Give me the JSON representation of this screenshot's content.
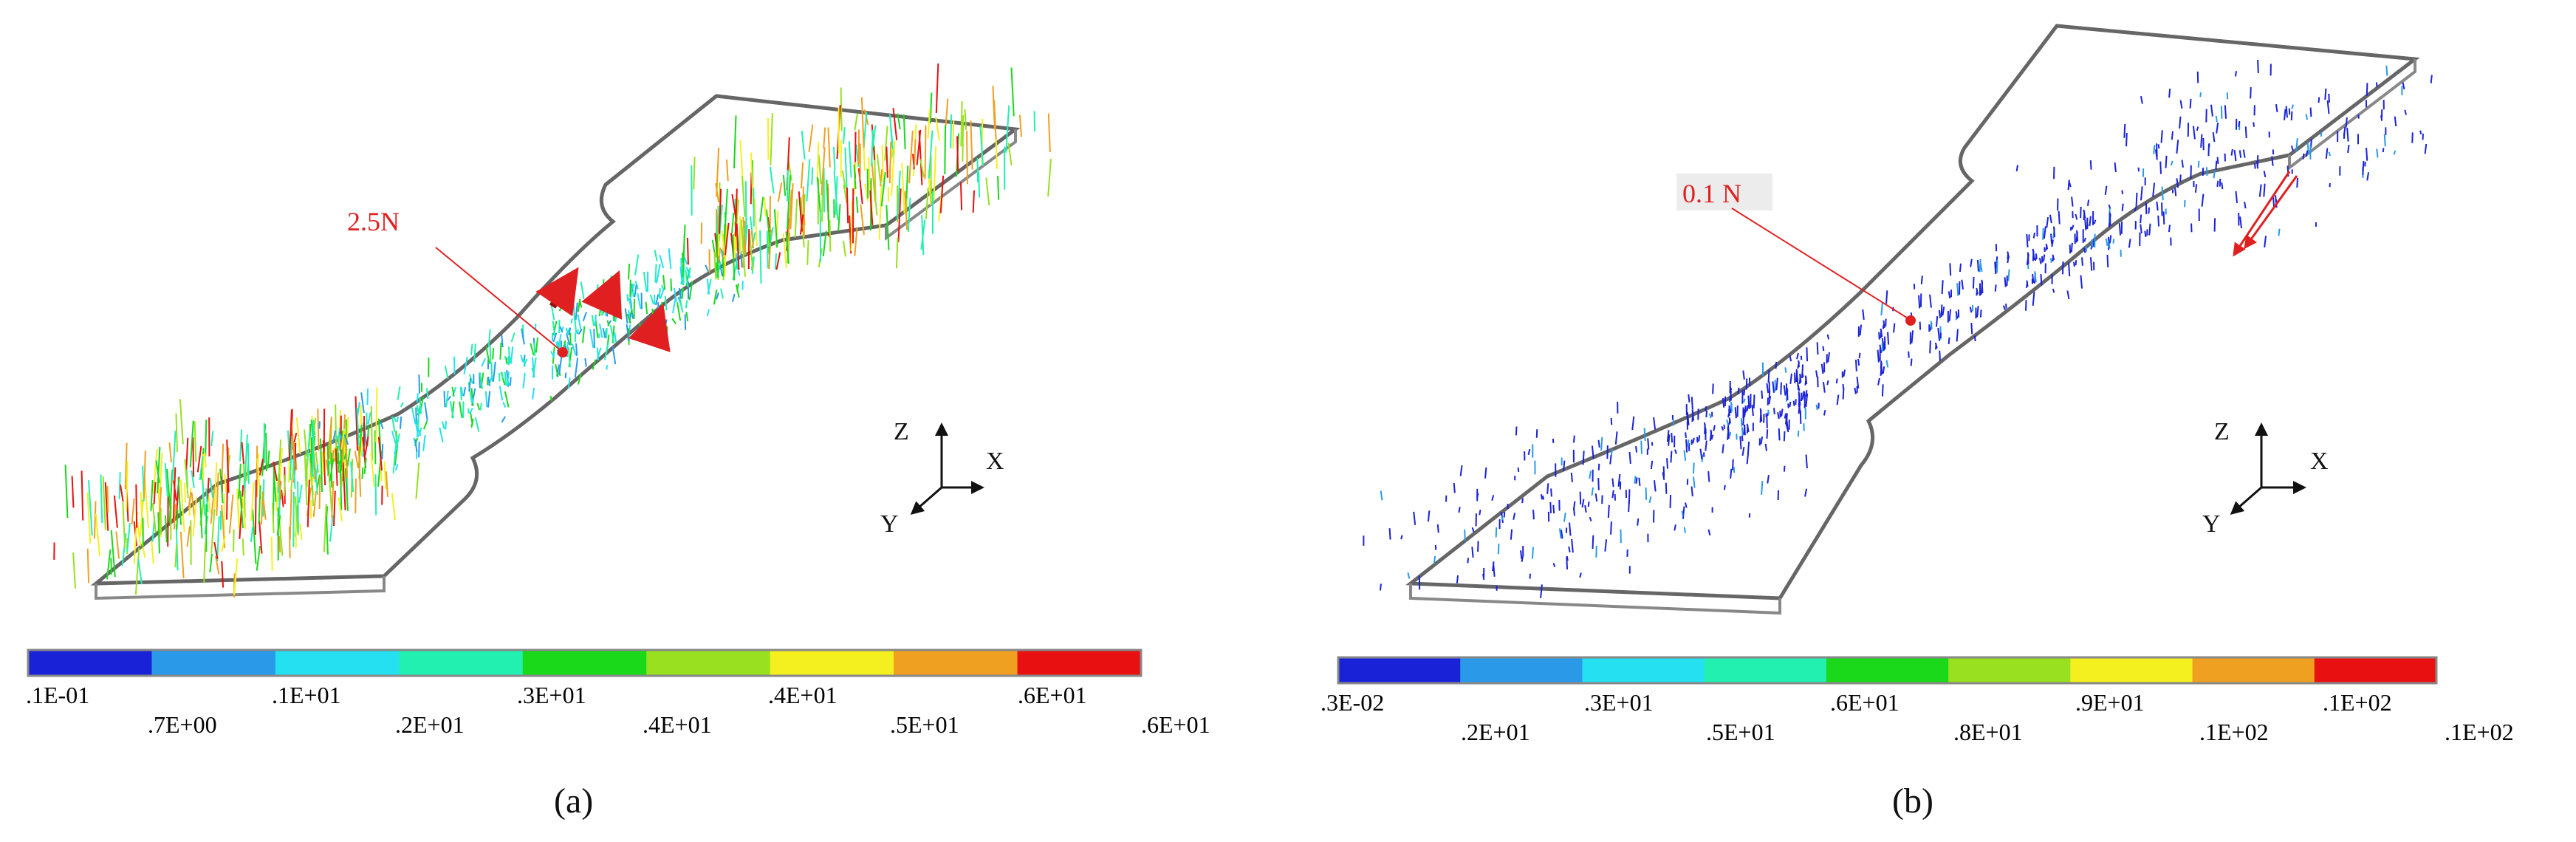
{
  "panels": [
    {
      "id": "a",
      "caption": "(a)",
      "force_label": "2.5N",
      "axes": {
        "z": "Z",
        "x": "X",
        "y": "Y"
      },
      "colorbar": {
        "colors": [
          "#1a22d8",
          "#2a9ae8",
          "#24e0f0",
          "#22f0b0",
          "#1ad81a",
          "#98e020",
          "#f4f020",
          "#f0a020",
          "#e81010"
        ],
        "labels_top": [
          ".1E-01",
          ".1E+01",
          ".3E+01",
          ".4E+01",
          ".6E+01"
        ],
        "labels_bottom": [
          ".7E+00",
          ".2E+01",
          ".4E+01",
          ".5E+01",
          ".6E+01"
        ]
      }
    },
    {
      "id": "b",
      "caption": "(b)",
      "force_label": "0.1 N",
      "axes": {
        "z": "Z",
        "x": "X",
        "y": "Y"
      },
      "colorbar": {
        "colors": [
          "#1a22d8",
          "#2a9ae8",
          "#24e0f0",
          "#22f0b0",
          "#1ad81a",
          "#98e020",
          "#f4f020",
          "#f0a020",
          "#e81010"
        ],
        "labels_top": [
          ".3E-02",
          ".3E+01",
          ".6E+01",
          ".9E+01",
          ".1E+02"
        ],
        "labels_bottom": [
          ".2E+01",
          ".5E+01",
          ".8E+01",
          ".1E+02",
          ".1E+02"
        ]
      }
    }
  ]
}
